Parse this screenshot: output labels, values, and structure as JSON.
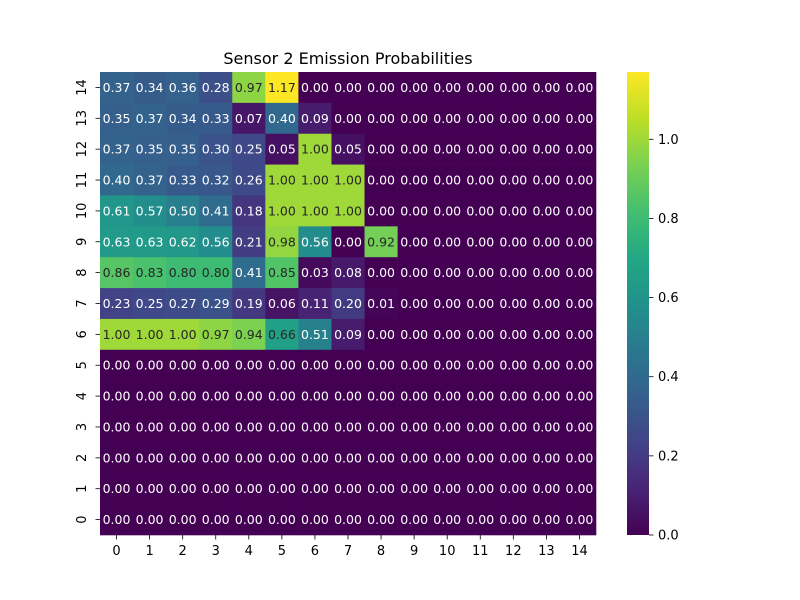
{
  "chart_data": {
    "type": "heatmap",
    "title": "Sensor 2 Emission Probabilities",
    "xlabel": "",
    "ylabel": "",
    "x_categories": [
      "0",
      "1",
      "2",
      "3",
      "4",
      "5",
      "6",
      "7",
      "8",
      "9",
      "10",
      "11",
      "12",
      "13",
      "14"
    ],
    "y_categories": [
      "14",
      "13",
      "12",
      "11",
      "10",
      "9",
      "8",
      "7",
      "6",
      "5",
      "4",
      "3",
      "2",
      "1",
      "0"
    ],
    "values": [
      [
        0.37,
        0.34,
        0.36,
        0.28,
        0.97,
        1.17,
        0.0,
        0.0,
        0.0,
        0.0,
        0.0,
        0.0,
        0.0,
        0.0,
        0.0
      ],
      [
        0.35,
        0.37,
        0.34,
        0.33,
        0.07,
        0.4,
        0.09,
        0.0,
        0.0,
        0.0,
        0.0,
        0.0,
        0.0,
        0.0,
        0.0
      ],
      [
        0.37,
        0.35,
        0.35,
        0.3,
        0.25,
        0.05,
        1.0,
        0.05,
        0.0,
        0.0,
        0.0,
        0.0,
        0.0,
        0.0,
        0.0
      ],
      [
        0.4,
        0.37,
        0.33,
        0.32,
        0.26,
        1.0,
        1.0,
        1.0,
        0.0,
        0.0,
        0.0,
        0.0,
        0.0,
        0.0,
        0.0
      ],
      [
        0.61,
        0.57,
        0.5,
        0.41,
        0.18,
        1.0,
        1.0,
        1.0,
        0.0,
        0.0,
        0.0,
        0.0,
        0.0,
        0.0,
        0.0
      ],
      [
        0.63,
        0.63,
        0.62,
        0.56,
        0.21,
        0.98,
        0.56,
        0.0,
        0.92,
        0.0,
        0.0,
        0.0,
        0.0,
        0.0,
        0.0
      ],
      [
        0.86,
        0.83,
        0.8,
        0.8,
        0.41,
        0.85,
        0.03,
        0.08,
        0.0,
        0.0,
        0.0,
        0.0,
        0.0,
        0.0,
        0.0
      ],
      [
        0.23,
        0.25,
        0.27,
        0.29,
        0.19,
        0.06,
        0.11,
        0.2,
        0.01,
        0.0,
        0.0,
        0.0,
        0.0,
        0.0,
        0.0
      ],
      [
        1.0,
        1.0,
        1.0,
        0.97,
        0.94,
        0.66,
        0.51,
        0.09,
        0.0,
        0.0,
        0.0,
        0.0,
        0.0,
        0.0,
        0.0
      ],
      [
        0.0,
        0.0,
        0.0,
        0.0,
        0.0,
        0.0,
        0.0,
        0.0,
        0.0,
        0.0,
        0.0,
        0.0,
        0.0,
        0.0,
        0.0
      ],
      [
        0.0,
        0.0,
        0.0,
        0.0,
        0.0,
        0.0,
        0.0,
        0.0,
        0.0,
        0.0,
        0.0,
        0.0,
        0.0,
        0.0,
        0.0
      ],
      [
        0.0,
        0.0,
        0.0,
        0.0,
        0.0,
        0.0,
        0.0,
        0.0,
        0.0,
        0.0,
        0.0,
        0.0,
        0.0,
        0.0,
        0.0
      ],
      [
        0.0,
        0.0,
        0.0,
        0.0,
        0.0,
        0.0,
        0.0,
        0.0,
        0.0,
        0.0,
        0.0,
        0.0,
        0.0,
        0.0,
        0.0
      ],
      [
        0.0,
        0.0,
        0.0,
        0.0,
        0.0,
        0.0,
        0.0,
        0.0,
        0.0,
        0.0,
        0.0,
        0.0,
        0.0,
        0.0,
        0.0
      ],
      [
        0.0,
        0.0,
        0.0,
        0.0,
        0.0,
        0.0,
        0.0,
        0.0,
        0.0,
        0.0,
        0.0,
        0.0,
        0.0,
        0.0,
        0.0
      ]
    ],
    "annotation_format": "0.00",
    "colormap": "viridis",
    "color_range": [
      0,
      1.17
    ],
    "colorbar_ticks": [
      "0.0",
      "0.2",
      "0.4",
      "0.6",
      "0.8",
      "1.0"
    ],
    "colorbar_tick_values": [
      0.0,
      0.2,
      0.4,
      0.6,
      0.8,
      1.0
    ],
    "grid": false,
    "legend": "colorbar-right"
  }
}
